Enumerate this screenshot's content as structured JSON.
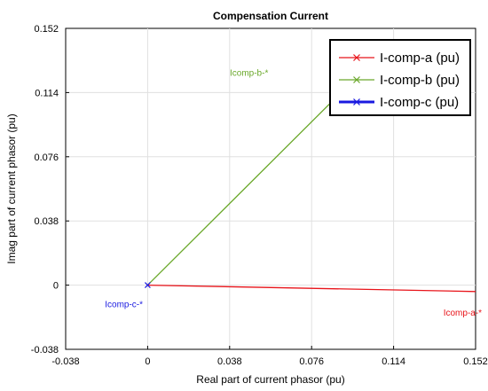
{
  "chart_data": {
    "type": "line",
    "title": "Compensation Current",
    "xlabel": "Real part of current phasor (pu)",
    "ylabel": "Imag part of current phasor (pu)",
    "xlim": [
      -0.038,
      0.152
    ],
    "ylim": [
      -0.038,
      0.152
    ],
    "xticks": [
      "-0.038",
      "0",
      "0.038",
      "0.076",
      "0.114",
      "0.152"
    ],
    "yticks": [
      "-0.038",
      "0",
      "0.038",
      "0.076",
      "0.114",
      "0.152"
    ],
    "grid": true,
    "legend_position": "top-right",
    "series": [
      {
        "name": "I-comp-a (pu)",
        "color": "#e8141a",
        "points": [
          [
            0,
            0
          ],
          [
            0.181,
            -0.0045
          ]
        ],
        "annotation": "Icomp-a-*",
        "annotation_at": [
          0.146,
          -0.018
        ]
      },
      {
        "name": "I-comp-b (pu)",
        "color": "#6aa82a",
        "points": [
          [
            0,
            0
          ],
          [
            0.0955,
            0.1215
          ]
        ],
        "annotation": "Icomp-b-*",
        "annotation_at": [
          0.047,
          0.124
        ]
      },
      {
        "name": "I-comp-c (pu)",
        "color": "#1a1ae0",
        "points": [
          [
            0,
            0
          ]
        ],
        "annotation": "Icomp-c-*",
        "annotation_at": [
          -0.011,
          -0.013
        ]
      }
    ]
  }
}
